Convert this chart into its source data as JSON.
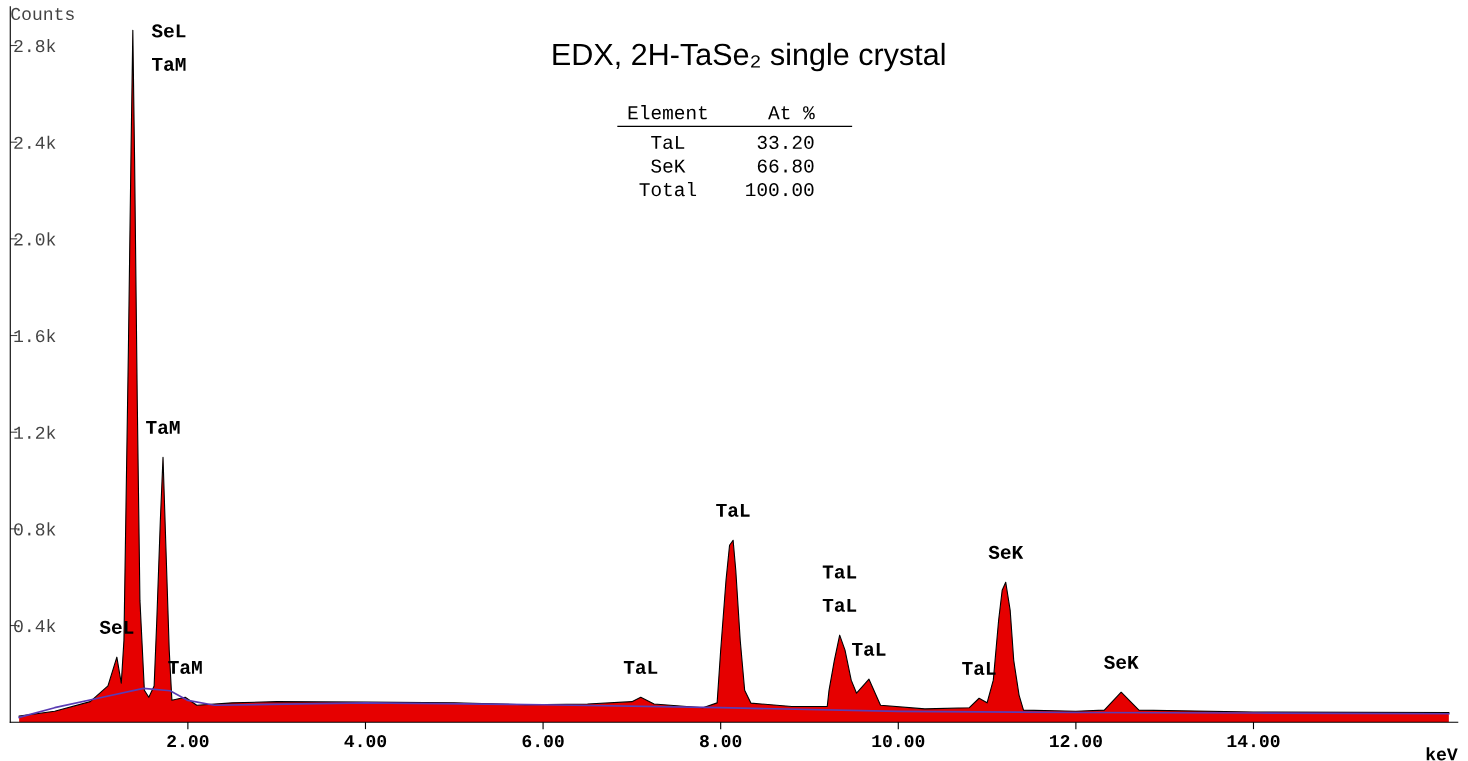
{
  "chart_data": {
    "type": "area",
    "title": "EDX, 2H-TaSe₂ single crystal",
    "xlabel": "keV",
    "ylabel": "Counts",
    "xlim": [
      0,
      16.3
    ],
    "ylim": [
      0,
      2960
    ],
    "xticks": [
      {
        "value": 2,
        "label": "2.00"
      },
      {
        "value": 4,
        "label": "4.00"
      },
      {
        "value": 6,
        "label": "6.00"
      },
      {
        "value": 8,
        "label": "8.00"
      },
      {
        "value": 10,
        "label": "10.00"
      },
      {
        "value": 12,
        "label": "12.00"
      },
      {
        "value": 14,
        "label": "14.00"
      }
    ],
    "yticks": [
      {
        "value": 400,
        "label": "0.4k"
      },
      {
        "value": 800,
        "label": "0.8k"
      },
      {
        "value": 1200,
        "label": "1.2k"
      },
      {
        "value": 1600,
        "label": "1.6k"
      },
      {
        "value": 2000,
        "label": "2.0k"
      },
      {
        "value": 2400,
        "label": "2.4k"
      },
      {
        "value": 2800,
        "label": "2.8k"
      }
    ],
    "grid": false,
    "legend": false,
    "series": [
      {
        "color": "#e60000",
        "x": [
          0.1,
          0.5,
          0.9,
          1.1,
          1.2,
          1.25,
          1.28,
          1.33,
          1.36,
          1.38,
          1.4,
          1.43,
          1.46,
          1.51,
          1.56,
          1.62,
          1.65,
          1.69,
          1.72,
          1.75,
          1.79,
          1.82,
          1.97,
          2.1,
          2.5,
          3.0,
          4.0,
          5.0,
          5.8,
          6.5,
          7.0,
          7.1,
          7.25,
          7.8,
          7.96,
          8.0,
          8.06,
          8.1,
          8.14,
          8.17,
          8.22,
          8.27,
          8.34,
          8.8,
          9.2,
          9.22,
          9.28,
          9.34,
          9.4,
          9.47,
          9.53,
          9.67,
          9.8,
          10.3,
          10.8,
          10.91,
          11.0,
          11.07,
          11.13,
          11.17,
          11.21,
          11.26,
          11.3,
          11.36,
          11.41,
          12.0,
          12.32,
          12.51,
          12.71,
          14.0,
          16.2
        ],
        "values": [
          25,
          45,
          85,
          150,
          269,
          161,
          339,
          1539,
          2366,
          2863,
          2325,
          1332,
          505,
          132,
          103,
          150,
          422,
          836,
          1096,
          753,
          298,
          91,
          103,
          70,
          80,
          85,
          83,
          80,
          72,
          75,
          85,
          103,
          75,
          60,
          80,
          298,
          587,
          732,
          753,
          629,
          339,
          132,
          79,
          65,
          65,
          132,
          256,
          360,
          298,
          174,
          120,
          178,
          70,
          55,
          60,
          99,
          80,
          174,
          422,
          546,
          579,
          463,
          256,
          112,
          50,
          45,
          50,
          124,
          50,
          42,
          40
        ]
      },
      {
        "type": "line",
        "color": "#5a3cb4",
        "x": [
          0.1,
          0.5,
          1.0,
          1.5,
          1.8,
          2.0,
          2.3,
          4.0,
          6.0,
          8.0,
          10.0,
          12.0,
          14.0,
          16.2
        ],
        "values": [
          20,
          60,
          100,
          140,
          130,
          90,
          70,
          80,
          72,
          60,
          45,
          40,
          38,
          35
        ]
      }
    ],
    "annotations": [
      {
        "text": "SeL",
        "x": 1.38,
        "y": 2863
      },
      {
        "text": "TaM",
        "x": 1.38,
        "y": 2863
      },
      {
        "text": "TaM",
        "x": 1.72,
        "y": 1096
      },
      {
        "text": "SeL",
        "x": 1.2,
        "y": 269
      },
      {
        "text": "TaM",
        "x": 1.97,
        "y": 103
      },
      {
        "text": "TaL",
        "x": 7.1,
        "y": 103
      },
      {
        "text": "TaL",
        "x": 8.14,
        "y": 753
      },
      {
        "text": "TaL",
        "x": 9.34,
        "y": 360
      },
      {
        "text": "TaL",
        "x": 9.34,
        "y": 360
      },
      {
        "text": "TaL",
        "x": 9.67,
        "y": 178
      },
      {
        "text": "TaL",
        "x": 10.91,
        "y": 99
      },
      {
        "text": "SeK",
        "x": 11.21,
        "y": 579
      },
      {
        "text": "SeK",
        "x": 12.51,
        "y": 124
      },
      "Element",
      "At %",
      "TaL",
      "33.20",
      "SeK",
      "66.80",
      "Total",
      "100.00"
    ]
  }
}
